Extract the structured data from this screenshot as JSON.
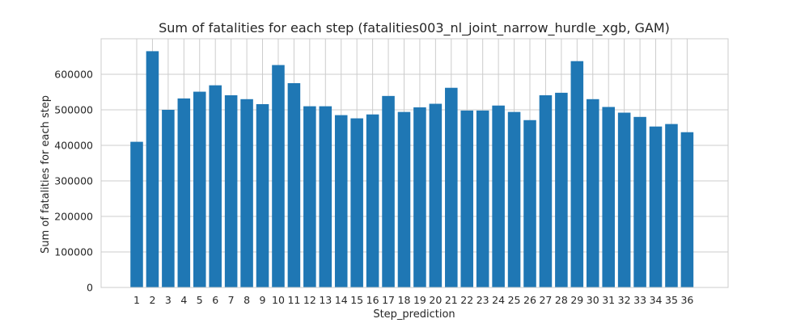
{
  "chart_data": {
    "type": "bar",
    "title": "Sum of fatalities for each step (fatalities003_nl_joint_narrow_hurdle_xgb, GAM)",
    "xlabel": "Step_prediction",
    "ylabel": "Sum of fatalities for each step",
    "categories": [
      "1",
      "2",
      "3",
      "4",
      "5",
      "6",
      "7",
      "8",
      "9",
      "10",
      "11",
      "12",
      "13",
      "14",
      "15",
      "16",
      "17",
      "18",
      "19",
      "20",
      "21",
      "22",
      "23",
      "24",
      "25",
      "26",
      "27",
      "28",
      "29",
      "30",
      "31",
      "32",
      "33",
      "34",
      "35",
      "36"
    ],
    "values": [
      410000,
      665000,
      500000,
      532000,
      551000,
      569000,
      541000,
      530000,
      516000,
      626000,
      575000,
      510000,
      510000,
      485000,
      476000,
      487000,
      539000,
      494000,
      507000,
      517000,
      562000,
      498000,
      498000,
      512000,
      494000,
      471000,
      541000,
      548000,
      637000,
      530000,
      508000,
      492000,
      480000,
      453000,
      460000,
      437000
    ],
    "ylim": [
      0,
      700000
    ],
    "yticks": [
      0,
      100000,
      200000,
      300000,
      400000,
      500000,
      600000
    ],
    "ytick_labels": [
      "0",
      "100000",
      "200000",
      "300000",
      "400000",
      "500000",
      "600000"
    ],
    "grid": true,
    "bar_color": "#1f77b4",
    "grid_color": "#cccccc"
  }
}
